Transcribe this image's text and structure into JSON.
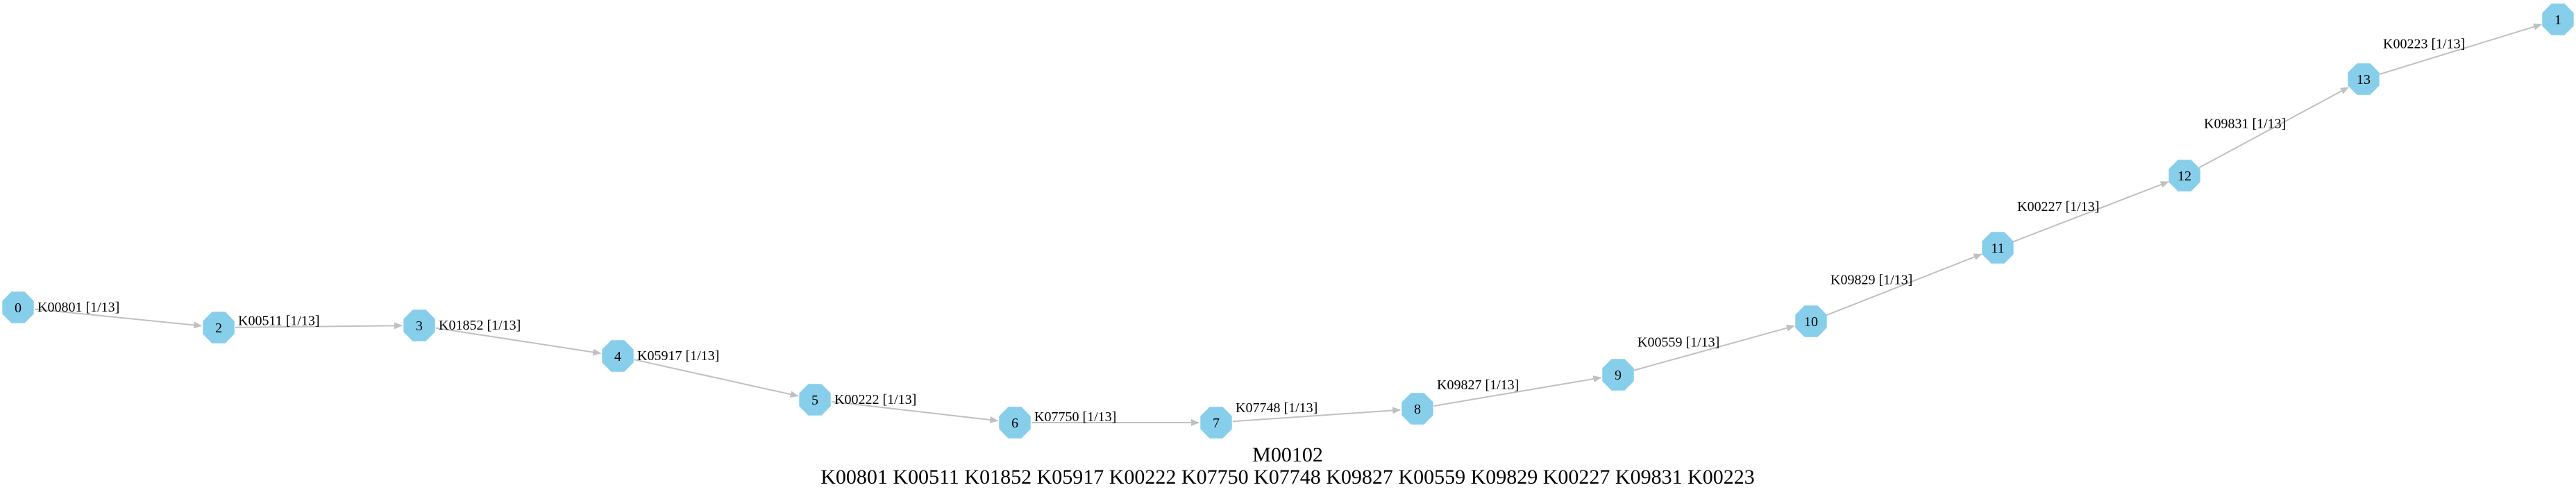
{
  "diagram": {
    "title": "M00102",
    "subtitle": "K00801 K00511 K01852 K05917 K00222 K07750 K07748 K09827 K00559 K09829 K00227 K09831 K00223",
    "node_color": "#87ceeb",
    "edge_color": "#c0c0c0",
    "nodes": [
      {
        "id": "0",
        "label": "0"
      },
      {
        "id": "2",
        "label": "2"
      },
      {
        "id": "3",
        "label": "3"
      },
      {
        "id": "4",
        "label": "4"
      },
      {
        "id": "5",
        "label": "5"
      },
      {
        "id": "6",
        "label": "6"
      },
      {
        "id": "7",
        "label": "7"
      },
      {
        "id": "8",
        "label": "8"
      },
      {
        "id": "9",
        "label": "9"
      },
      {
        "id": "10",
        "label": "10"
      },
      {
        "id": "11",
        "label": "11"
      },
      {
        "id": "12",
        "label": "12"
      },
      {
        "id": "13",
        "label": "13"
      },
      {
        "id": "1",
        "label": "1"
      }
    ],
    "edges": [
      {
        "from": "0",
        "to": "2",
        "label": "K00801 [1/13]"
      },
      {
        "from": "2",
        "to": "3",
        "label": "K00511 [1/13]"
      },
      {
        "from": "3",
        "to": "4",
        "label": "K01852 [1/13]"
      },
      {
        "from": "4",
        "to": "5",
        "label": "K05917 [1/13]"
      },
      {
        "from": "5",
        "to": "6",
        "label": "K00222 [1/13]"
      },
      {
        "from": "6",
        "to": "7",
        "label": "K07750 [1/13]"
      },
      {
        "from": "7",
        "to": "8",
        "label": "K07748 [1/13]"
      },
      {
        "from": "8",
        "to": "9",
        "label": "K09827 [1/13]"
      },
      {
        "from": "9",
        "to": "10",
        "label": "K00559 [1/13]"
      },
      {
        "from": "10",
        "to": "11",
        "label": "K09829 [1/13]"
      },
      {
        "from": "11",
        "to": "12",
        "label": "K00227 [1/13]"
      },
      {
        "from": "12",
        "to": "13",
        "label": "K09831 [1/13]"
      },
      {
        "from": "13",
        "to": "1",
        "label": "K00223 [1/13]"
      }
    ]
  }
}
